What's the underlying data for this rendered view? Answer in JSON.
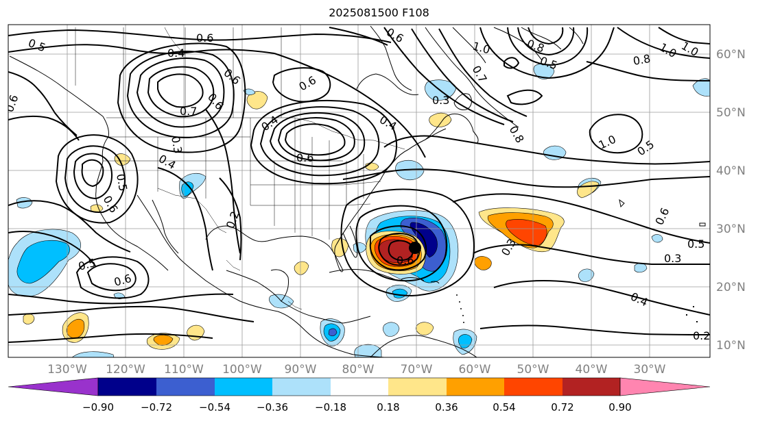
{
  "title": "2025081500 F108",
  "longitude_labels": [
    "130°W",
    "120°W",
    "110°W",
    "100°W",
    "90°W",
    "80°W",
    "70°W",
    "60°W",
    "50°W",
    "40°W",
    "30°W"
  ],
  "latitude_labels": [
    "60°N",
    "50°N",
    "40°N",
    "30°N",
    "20°N",
    "10°N"
  ],
  "colorbar": {
    "colors": [
      "#9932CC",
      "#00008B",
      "#3C5FD0",
      "#00BFFF",
      "#ADE1FA",
      "#FFFFFF",
      "#FFE68A",
      "#FFA000",
      "#FF4500",
      "#B22222",
      "#FF85B0"
    ],
    "tick_labels": [
      "−0.90",
      "−0.72",
      "−0.54",
      "−0.36",
      "−0.18",
      "0.18",
      "0.36",
      "0.54",
      "0.72",
      "0.90"
    ]
  },
  "contour_labels": [
    {
      "text": "0.5"
    },
    {
      "text": "0.6"
    },
    {
      "text": "0.4"
    },
    {
      "text": "0.6"
    },
    {
      "text": "0.7"
    },
    {
      "text": "0.6"
    },
    {
      "text": "0.3"
    },
    {
      "text": "0.4"
    },
    {
      "text": "0.5"
    },
    {
      "text": "0.6"
    },
    {
      "text": "0.2"
    },
    {
      "text": "0.5"
    },
    {
      "text": "0.6"
    },
    {
      "text": "0.6"
    },
    {
      "text": "0.4"
    },
    {
      "text": "0.6"
    },
    {
      "text": "0.6"
    },
    {
      "text": "0.3"
    },
    {
      "text": "0.4"
    },
    {
      "text": "1.0"
    },
    {
      "text": "0.8"
    },
    {
      "text": "1.0"
    },
    {
      "text": "1.0"
    },
    {
      "text": "0.8"
    },
    {
      "text": "1.0"
    },
    {
      "text": "0.5"
    },
    {
      "text": "0.6"
    },
    {
      "text": "0.5"
    },
    {
      "text": "0.3"
    },
    {
      "text": "0.4"
    },
    {
      "text": "0.2"
    },
    {
      "text": "0.3"
    },
    {
      "text": "0.6"
    },
    {
      "text": "0.8"
    },
    {
      "text": "0.7"
    },
    {
      "text": "0.6"
    },
    {
      "text": "0.5"
    }
  ],
  "storm_marker": "black-dot"
}
